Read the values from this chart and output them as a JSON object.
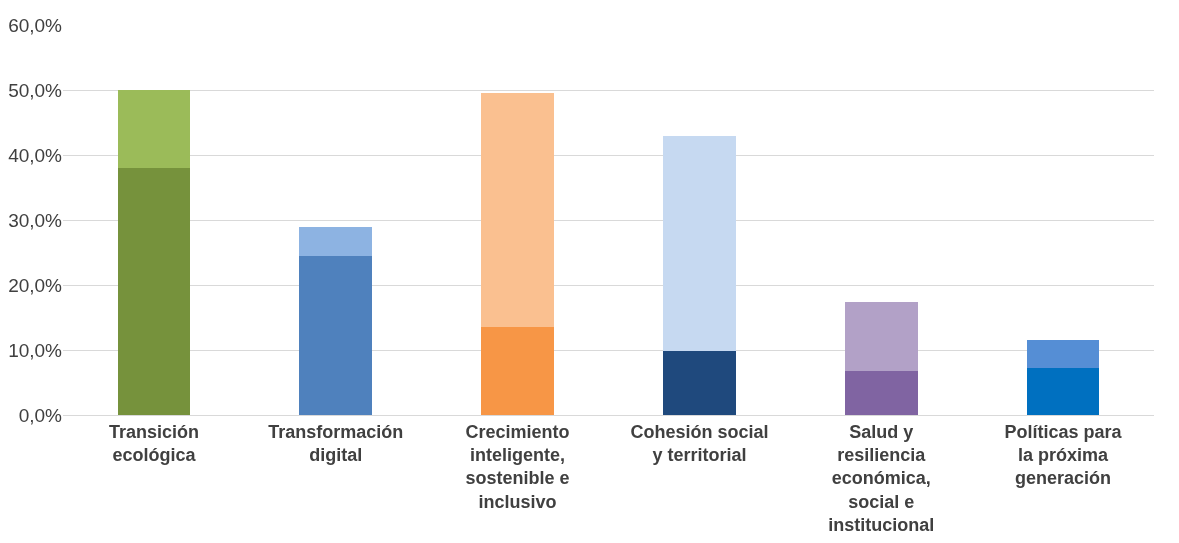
{
  "chart_data": {
    "type": "bar",
    "stacked": true,
    "categories": [
      "Transición ecológica",
      "Transformación digital",
      "Crecimiento inteligente, sostenible e inclusivo",
      "Cohesión social y territorial",
      "Salud y resiliencia económica, social e institucional",
      "Políticas para la próxima generación"
    ],
    "series": [
      {
        "colors": [
          "#76923c",
          "#4f81bd",
          "#f79646",
          "#1f497d",
          "#8064a2",
          "#0070c0"
        ],
        "values": [
          38.0,
          24.4,
          13.5,
          9.8,
          6.7,
          7.2
        ]
      },
      {
        "colors": [
          "#9bbb59",
          "#8db3e2",
          "#fac090",
          "#c6d9f1",
          "#b2a1c7",
          "#558ed5"
        ],
        "values": [
          12.0,
          4.5,
          36.1,
          33.2,
          10.7,
          4.3
        ]
      }
    ],
    "ylim": [
      0,
      60
    ],
    "yticks": [
      {
        "value": 0,
        "label": "0,0%"
      },
      {
        "value": 10,
        "label": "10,0%"
      },
      {
        "value": 20,
        "label": "20,0%"
      },
      {
        "value": 30,
        "label": "30,0%"
      },
      {
        "value": 40,
        "label": "40,0%"
      },
      {
        "value": 50,
        "label": "50,0%"
      },
      {
        "value": 60,
        "label": "60,0%"
      }
    ],
    "grid": "y"
  }
}
